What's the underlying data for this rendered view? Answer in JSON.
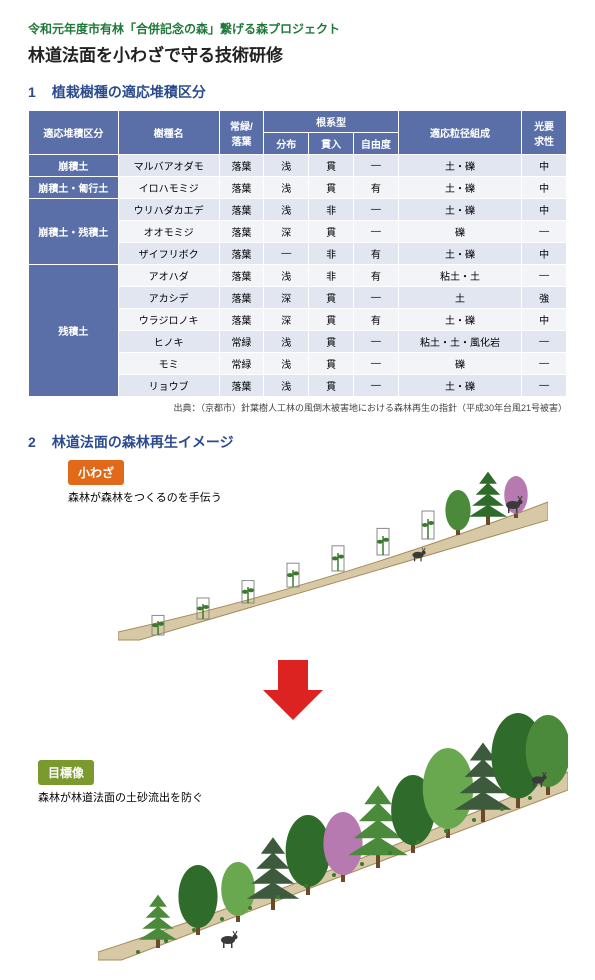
{
  "header": {
    "supertitle": "令和元年度市有林「合併記念の森」繋げる森プロジェクト",
    "supertitle_color": "#1f7a3a",
    "title": "林道法面を小わざで守る技術研修",
    "title_color": "#222222"
  },
  "section1": {
    "number": "1",
    "heading": "植栽樹種の適応堆積区分",
    "heading_color": "#2a4b8d",
    "table": {
      "header_bg": "#5a6fa8",
      "header_fg": "#ffffff",
      "row_alt_bg": [
        "#e1e6f0",
        "#f2f4f8"
      ],
      "border_color": "#ffffff",
      "col_widths_pct": [
        16,
        18,
        8,
        8,
        8,
        8,
        22,
        8
      ],
      "header_row1": [
        "適応堆積区分",
        "樹種名",
        "常緑/\n落葉",
        "根系型",
        "",
        "",
        "適応粒径組成",
        "光要\n求性"
      ],
      "header_row2": [
        "分布",
        "貫入",
        "自由度"
      ],
      "groups": [
        {
          "label": "崩積土",
          "rows": [
            [
              "マルバアオダモ",
              "落葉",
              "浅",
              "貫",
              "—",
              "土・礫",
              "中"
            ]
          ]
        },
        {
          "label": "崩積土・匍行土",
          "rows": [
            [
              "イロハモミジ",
              "落葉",
              "浅",
              "貫",
              "有",
              "土・礫",
              "中"
            ]
          ]
        },
        {
          "label": "崩積土・残積土",
          "rows": [
            [
              "ウリハダカエデ",
              "落葉",
              "浅",
              "非",
              "—",
              "土・礫",
              "中"
            ],
            [
              "オオモミジ",
              "落葉",
              "深",
              "貫",
              "—",
              "礫",
              "—"
            ],
            [
              "ザイフリボク",
              "落葉",
              "—",
              "非",
              "有",
              "土・礫",
              "中"
            ]
          ]
        },
        {
          "label": "残積土",
          "rows": [
            [
              "アオハダ",
              "落葉",
              "浅",
              "非",
              "有",
              "粘土・土",
              "—"
            ],
            [
              "アカシデ",
              "落葉",
              "深",
              "貫",
              "—",
              "土",
              "強"
            ],
            [
              "ウラジロノキ",
              "落葉",
              "深",
              "貫",
              "有",
              "土・礫",
              "中"
            ],
            [
              "ヒノキ",
              "常緑",
              "浅",
              "貫",
              "—",
              "粘土・土・風化岩",
              "—"
            ],
            [
              "モミ",
              "常緑",
              "浅",
              "貫",
              "—",
              "礫",
              "—"
            ],
            [
              "リョウブ",
              "落葉",
              "浅",
              "貫",
              "—",
              "土・礫",
              "—"
            ]
          ]
        }
      ]
    },
    "source": "出典：（京都市）針葉樹人工林の風倒木被害地における森林再生の指針（平成30年台風21号被害）"
  },
  "section2": {
    "number": "2",
    "heading": "林道法面の森林再生イメージ",
    "heading_color": "#2a4b8d",
    "before": {
      "tag": "小わざ",
      "tag_bg": "#e06a1a",
      "caption": "森林が森林をつくるのを手伝う"
    },
    "after": {
      "tag": "目標像",
      "tag_bg": "#7a9a2e",
      "caption": "森林が林道法面の土砂流出を防ぐ"
    },
    "arrow_color": "#d22",
    "illustration": {
      "slope_fill": "#d8c9a6",
      "slope_stroke": "#a78b5a",
      "seedling_color": "#3a7a2e",
      "tree_colors": [
        "#2f6b2a",
        "#4a8a3a",
        "#6aa84f",
        "#b77ab0",
        "#3d5a3d"
      ],
      "trunk_color": "#6b4a2a",
      "deer_color": "#3a3a3a"
    }
  }
}
